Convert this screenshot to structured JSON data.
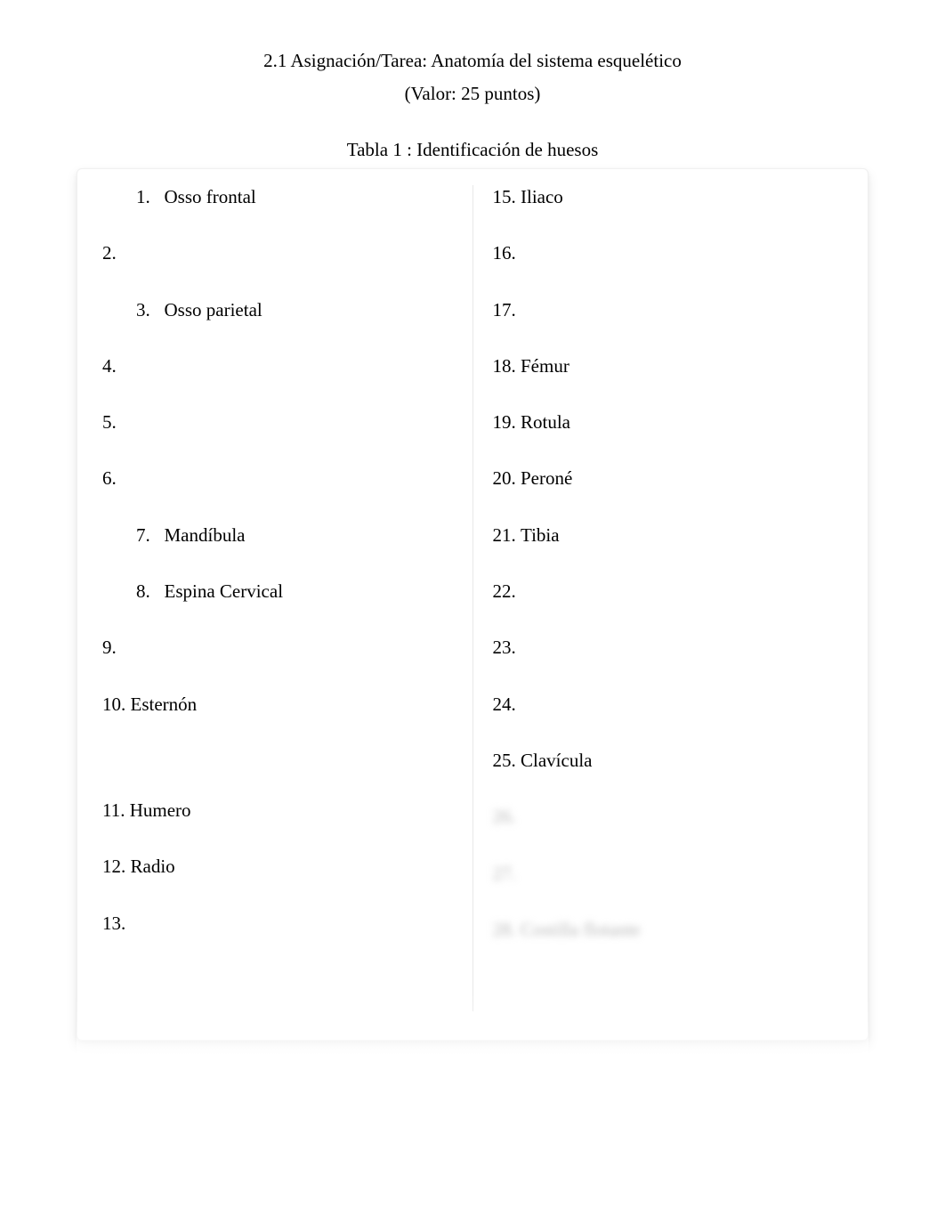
{
  "header": {
    "title": "2.1 Asignación/Tarea: Anatomía del sistema esquelético",
    "subtitle": "(Valor: 25 puntos)"
  },
  "table": {
    "title": "Tabla 1 : Identificación de huesos",
    "background_color": "#ffffff",
    "shadow_color": "rgba(0,0,0,0.08)",
    "divider_color": "#e8e8e8",
    "font_color": "#000000",
    "font_size_pt": 16
  },
  "left_column": [
    {
      "num": "1.",
      "text": "Osso frontal",
      "indent": true
    },
    {
      "num": "2.",
      "text": ""
    },
    {
      "num": "3.",
      "text": "Osso parietal",
      "indent": true
    },
    {
      "num": "4.",
      "text": ""
    },
    {
      "num": "5.",
      "text": ""
    },
    {
      "num": "6.",
      "text": ""
    },
    {
      "num": "7.",
      "text": "Mandíbula",
      "indent": true
    },
    {
      "num": "8.",
      "text": "Espina Cervical",
      "indent": true
    },
    {
      "num": "9.",
      "text": ""
    },
    {
      "num": "10.",
      "text": "Esternón"
    },
    {
      "spacer": true
    },
    {
      "num": "11.",
      "text": "Humero"
    },
    {
      "num": "12.",
      "text": "Radio"
    },
    {
      "num": "13.",
      "text": ""
    }
  ],
  "right_column": [
    {
      "num": "15.",
      "text": "Iliaco"
    },
    {
      "num": "16.",
      "text": ""
    },
    {
      "num": "17.",
      "text": ""
    },
    {
      "num": "18.",
      "text": "Fémur"
    },
    {
      "num": "19.",
      "text": "Rotula"
    },
    {
      "num": "20.",
      "text": "Peroné"
    },
    {
      "num": "21.",
      "text": "Tibia"
    },
    {
      "num": "22.",
      "text": ""
    },
    {
      "num": "23.",
      "text": ""
    },
    {
      "num": "24.",
      "text": ""
    },
    {
      "num": "25.",
      "text": "Clavícula"
    },
    {
      "num": "26.",
      "text": "",
      "blurred": true
    },
    {
      "num": "27.",
      "text": "",
      "blurred": true
    },
    {
      "num": "28.",
      "text": "Costilla flotante",
      "blurred": true
    }
  ]
}
